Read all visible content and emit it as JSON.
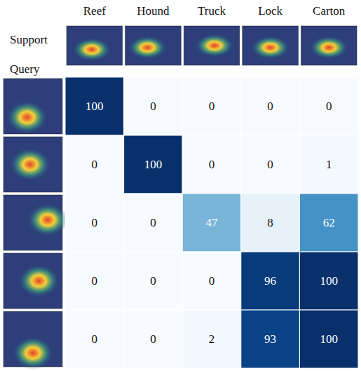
{
  "chart_data": {
    "type": "heatmap",
    "x_label": "Support",
    "y_label": "Query",
    "x": [
      "Reef",
      "Hound",
      "Truck",
      "Lock",
      "Carton"
    ],
    "y": [
      null,
      null,
      null,
      null,
      null
    ],
    "values": [
      [
        100,
        0,
        0,
        0,
        0
      ],
      [
        0,
        100,
        0,
        0,
        1
      ],
      [
        0,
        0,
        47,
        8,
        62
      ],
      [
        0,
        0,
        0,
        96,
        100
      ],
      [
        0,
        0,
        2,
        93,
        100
      ]
    ],
    "color": "Blues",
    "data_labels": true
  }
}
